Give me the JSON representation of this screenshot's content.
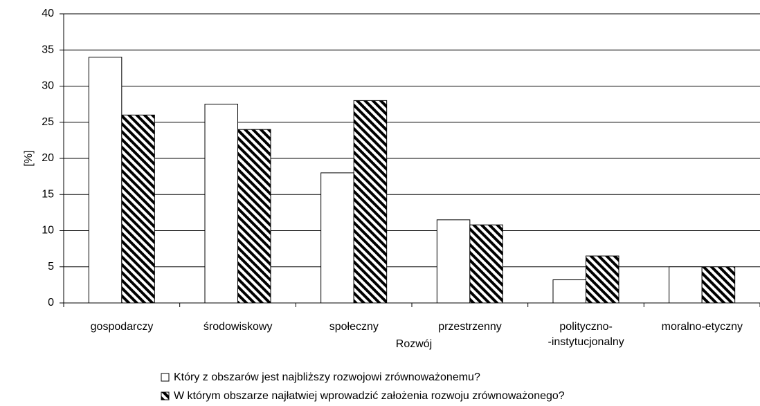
{
  "chart_data": {
    "type": "bar",
    "xlabel": "Rozwój",
    "ylabel": "[%]",
    "categories": [
      "gospodarczy",
      "środowiskowy",
      "społeczny",
      "przestrzenny",
      "polityczno-\n-instytucjonalny",
      "moralno-etyczny"
    ],
    "series": [
      {
        "name": "Który z obszarów jest najbliższy rozwojowi zrównoważonemu?",
        "color": "#ffffff",
        "hatch": false,
        "values": [
          34,
          27.5,
          18,
          11.5,
          3.2,
          5
        ]
      },
      {
        "name": "W którym obszarze najłatwiej wprowadzić założenia rozwoju zrównoważonego?",
        "color": "#000000",
        "hatch": true,
        "values": [
          26,
          24,
          28,
          10.8,
          6.5,
          5
        ]
      }
    ],
    "ylim": [
      0,
      40
    ],
    "yticks": [
      0,
      5,
      10,
      15,
      20,
      25,
      30,
      35,
      40
    ],
    "grid": true
  }
}
